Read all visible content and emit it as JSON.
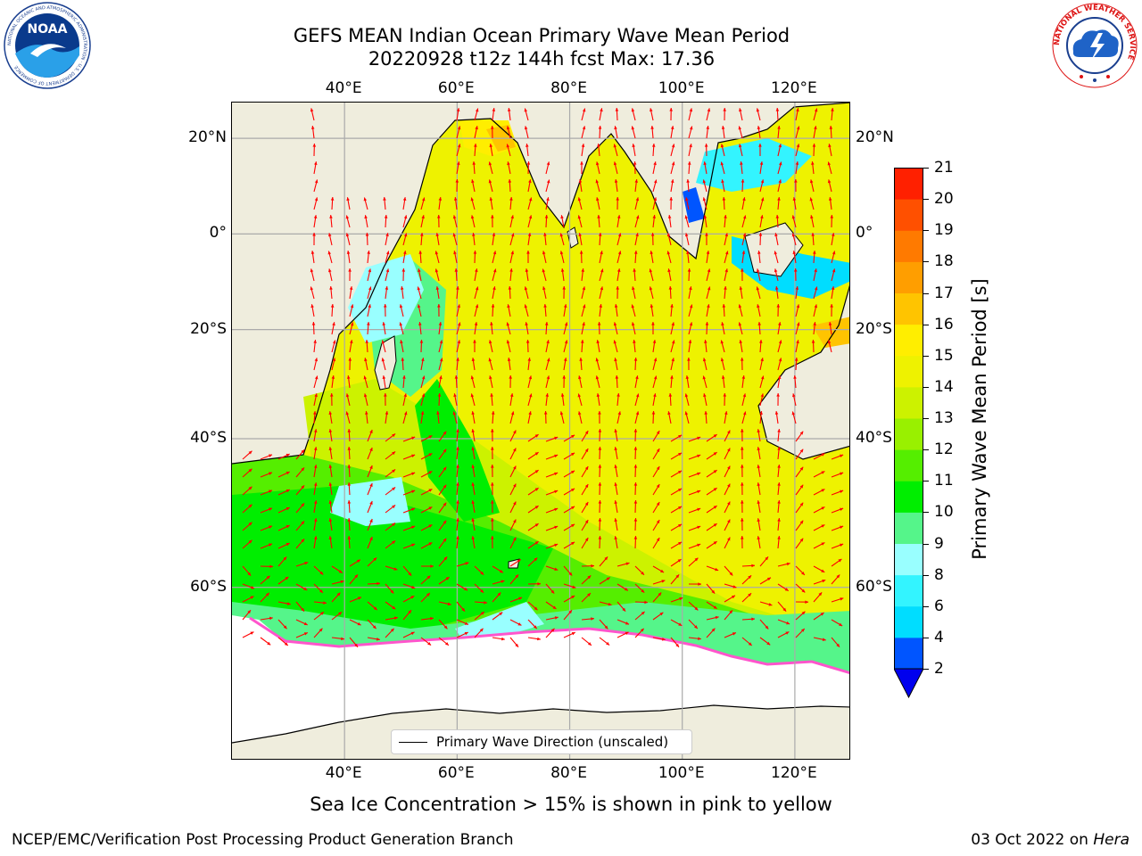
{
  "figure": {
    "title_line1": "GEFS MEAN Indian Ocean Primary Wave Mean Period",
    "title_line2": "20220928 t12z 144h fcst   Max: 17.36",
    "caption": "Sea Ice Concentration > 15% is shown in pink to yellow",
    "footer_left": "NCEP/EMC/Verification Post Processing Product Generation Branch",
    "footer_right_prefix": "03 Oct 2022 on ",
    "footer_right_machine": "Hera"
  },
  "logos": {
    "noaa_text": "NOAA",
    "noaa_ring_text": "NATIONAL OCEANIC AND ATMOSPHERIC ADMINISTRATION · U.S. DEPARTMENT OF COMMERCE",
    "nws_ring_text": "NATIONAL WEATHER SERVICE"
  },
  "map": {
    "lon_range": [
      20,
      130
    ],
    "lat_range": [
      -74,
      27
    ],
    "lon_ticks": [
      "40°E",
      "60°E",
      "80°E",
      "100°E",
      "120°E"
    ],
    "lat_ticks": [
      "20°N",
      "0°",
      "20°S",
      "40°S",
      "60°S"
    ],
    "gridlines": true,
    "land_color": "#efeddd",
    "legend_label": "Primary Wave Direction (unscaled)",
    "arrow_color": "#ff0000"
  },
  "colorbar": {
    "title": "Primary Wave Mean Period [s]",
    "levels": [
      "2",
      "4",
      "6",
      "8",
      "9",
      "10",
      "11",
      "12",
      "13",
      "14",
      "15",
      "16",
      "17",
      "18",
      "19",
      "20",
      "21"
    ],
    "colors": [
      "#0055ff",
      "#00ddff",
      "#33f4ff",
      "#99ffff",
      "#55f58a",
      "#00ee00",
      "#55ee00",
      "#99f000",
      "#ccf200",
      "#eef200",
      "#ffee00",
      "#ffc400",
      "#ff9e00",
      "#ff7a00",
      "#ff5000",
      "#ff2000"
    ],
    "under_color": "#0000ee",
    "extend": "min"
  }
}
